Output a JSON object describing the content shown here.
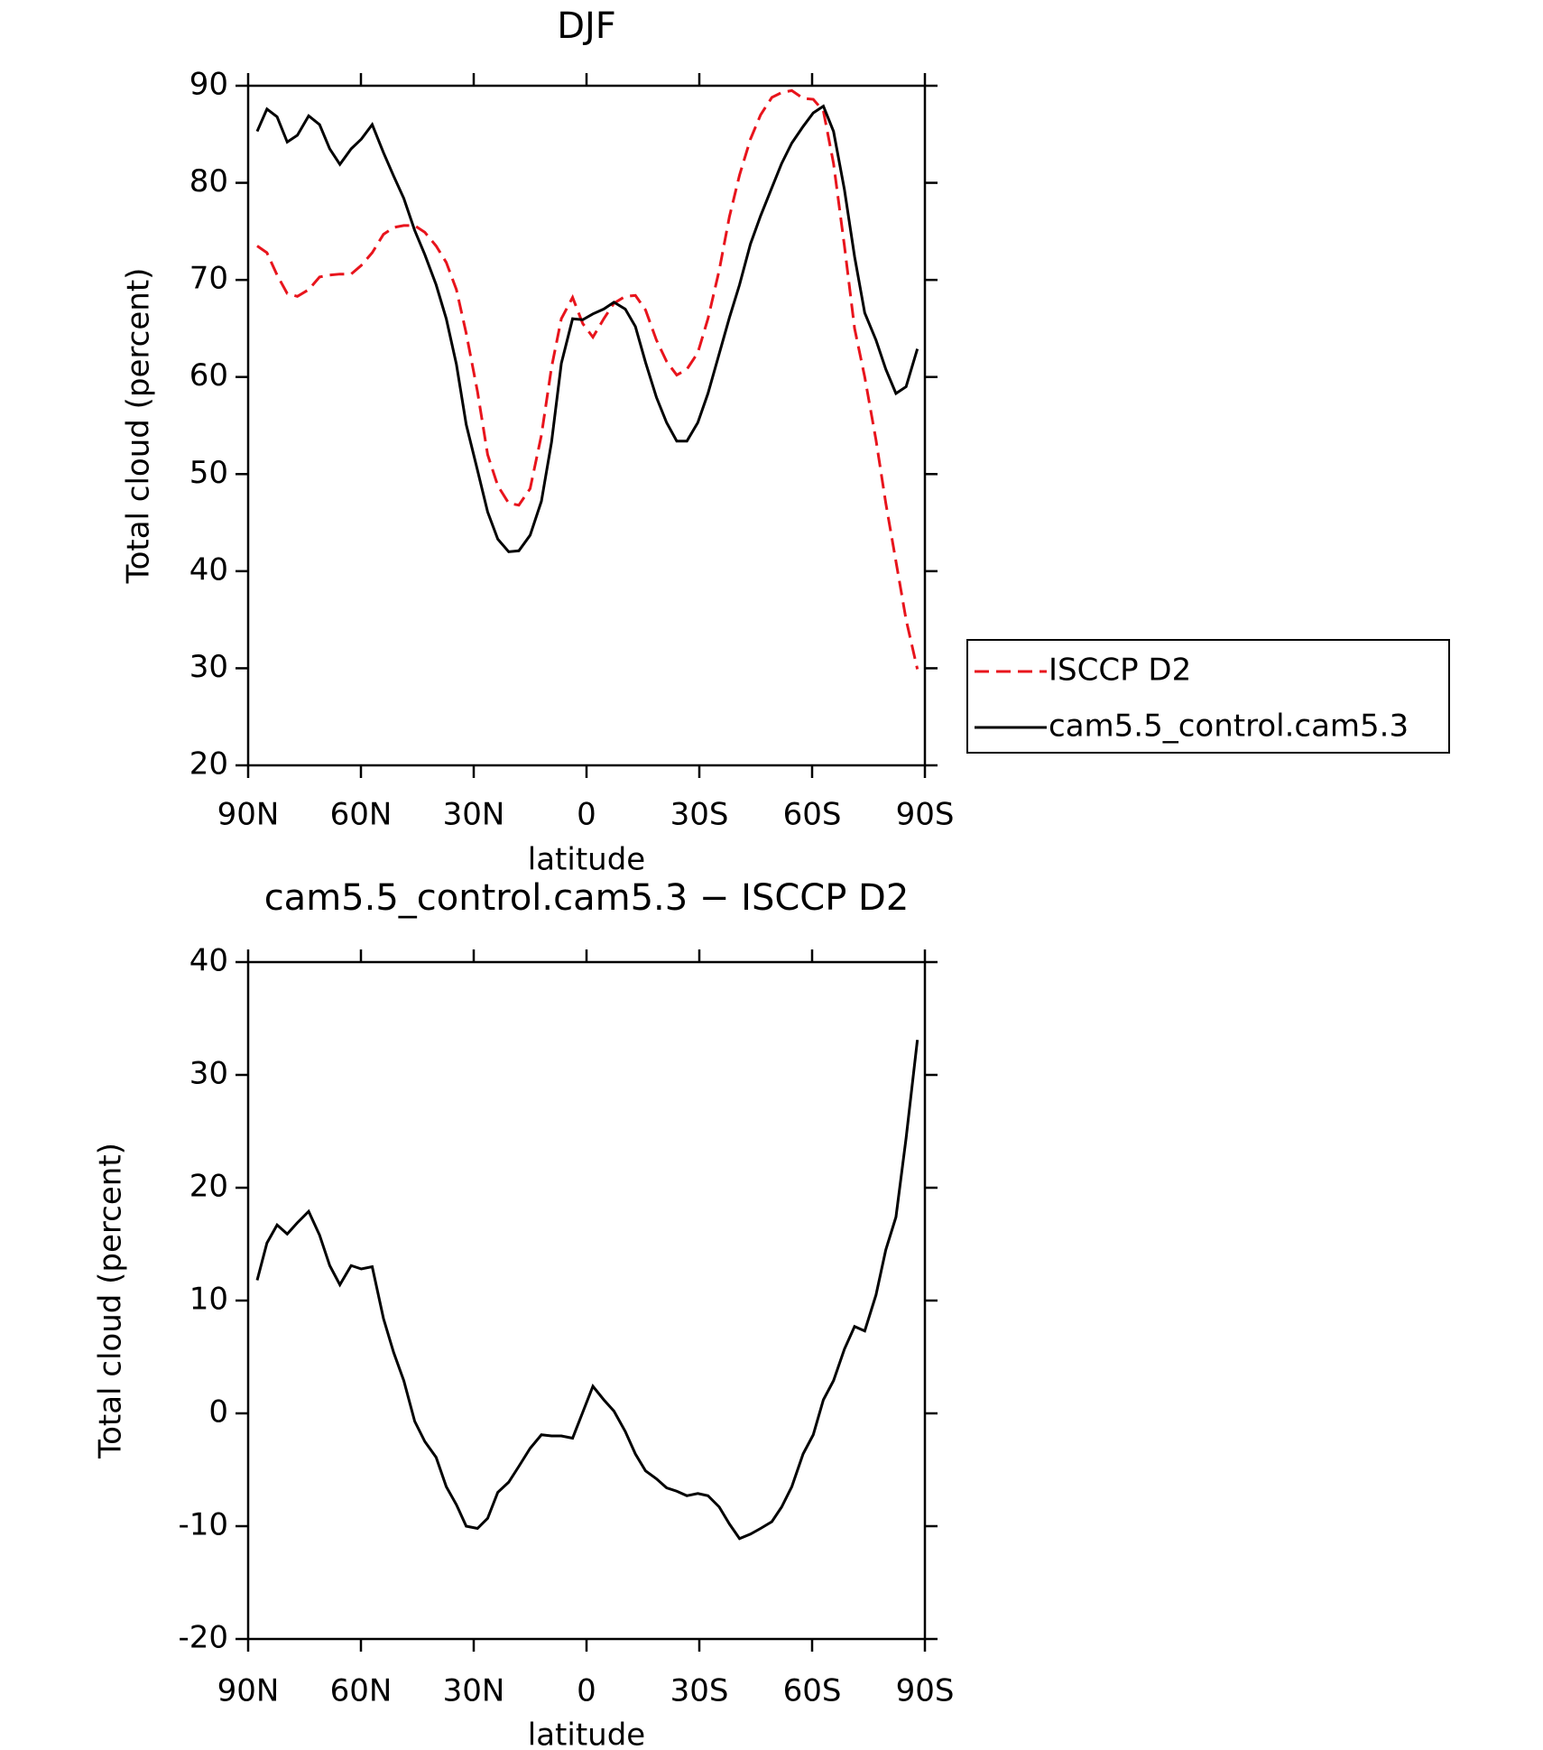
{
  "chart_data": [
    {
      "type": "line",
      "title": "DJF",
      "xlabel": "latitude",
      "ylabel": "Total cloud (percent)",
      "x": [
        87.6,
        85.0,
        82.3,
        79.6,
        76.9,
        73.9,
        71.0,
        68.3,
        65.6,
        62.6,
        59.9,
        57.0,
        54.0,
        51.3,
        48.6,
        45.7,
        43.0,
        40.0,
        37.3,
        34.6,
        32.0,
        29.0,
        26.3,
        23.6,
        20.7,
        18.0,
        15.0,
        12.0,
        9.3,
        6.7,
        3.7,
        1.0,
        -1.7,
        -4.6,
        -7.3,
        -10.3,
        -13.0,
        -15.7,
        -18.6,
        -21.3,
        -24.0,
        -26.7,
        -29.6,
        -32.3,
        -35.3,
        -38.0,
        -40.7,
        -43.6,
        -46.3,
        -49.3,
        -51.9,
        -54.6,
        -57.6,
        -60.3,
        -63.0,
        -65.7,
        -68.6,
        -71.3,
        -74.0,
        -77.0,
        -79.6,
        -82.3,
        -85.0,
        -88.0
      ],
      "series": [
        {
          "name": "ISCCP D2",
          "color": "#e8141c",
          "style": "dashed",
          "values": [
            73.5,
            72.8,
            70.5,
            68.6,
            68.3,
            69.0,
            70.3,
            70.5,
            70.6,
            70.6,
            71.5,
            72.8,
            74.7,
            75.4,
            75.6,
            75.6,
            74.9,
            73.5,
            71.8,
            69.0,
            64.5,
            58.5,
            52.0,
            48.8,
            47.0,
            46.8,
            48.5,
            54.0,
            61.0,
            66.0,
            68.2,
            65.5,
            64.1,
            66.0,
            67.6,
            68.3,
            68.4,
            66.9,
            63.8,
            61.6,
            60.2,
            60.8,
            62.5,
            66.0,
            71.0,
            76.5,
            80.8,
            84.5,
            87.0,
            88.8,
            89.3,
            89.5,
            88.7,
            88.6,
            87.4,
            82.0,
            73.5,
            65.0,
            60.0,
            53.5,
            47.0,
            41.0,
            35.0,
            29.9
          ]
        },
        {
          "name": "cam5.5_control.cam5.3",
          "color": "#000000",
          "style": "solid",
          "values": [
            85.3,
            87.6,
            86.8,
            84.2,
            84.9,
            86.9,
            86.0,
            83.5,
            81.9,
            83.5,
            84.5,
            86.0,
            83.1,
            80.7,
            78.4,
            75.1,
            72.6,
            69.5,
            66.0,
            61.3,
            55.1,
            50.4,
            46.1,
            43.3,
            42.0,
            42.1,
            43.7,
            47.2,
            53.3,
            61.4,
            66.0,
            65.9,
            66.5,
            67.0,
            67.7,
            67.0,
            65.2,
            61.5,
            57.9,
            55.3,
            53.4,
            53.4,
            55.3,
            58.3,
            62.4,
            66.1,
            69.5,
            73.7,
            76.6,
            79.5,
            82.0,
            84.1,
            85.8,
            87.2,
            87.9,
            85.3,
            79.3,
            72.4,
            66.6,
            63.8,
            60.8,
            58.3,
            59.0,
            62.9
          ]
        }
      ],
      "xlim": [
        90,
        -90
      ],
      "xticks": [
        {
          "value": 90,
          "label": "90N"
        },
        {
          "value": 60,
          "label": "60N"
        },
        {
          "value": 30,
          "label": "30N"
        },
        0,
        {
          "value": -30,
          "label": "30S"
        },
        {
          "value": -60,
          "label": "60S"
        },
        {
          "value": -90,
          "label": "90S"
        }
      ],
      "ylim": [
        20,
        90
      ],
      "yticks": [
        20,
        30,
        40,
        50,
        60,
        70,
        80,
        90
      ],
      "legend": "outside-right"
    },
    {
      "type": "line",
      "title": "cam5.5_control.cam5.3 − ISCCP D2",
      "xlabel": "latitude",
      "ylabel": "Total cloud (percent)",
      "x": [
        87.6,
        85.0,
        82.3,
        79.6,
        76.9,
        73.9,
        71.0,
        68.3,
        65.6,
        62.6,
        59.9,
        57.0,
        54.0,
        51.3,
        48.6,
        45.7,
        43.0,
        40.0,
        37.3,
        34.6,
        32.0,
        29.0,
        26.3,
        23.6,
        20.7,
        18.0,
        15.0,
        12.0,
        9.3,
        6.7,
        3.7,
        1.0,
        -1.7,
        -4.6,
        -7.3,
        -10.3,
        -13.0,
        -15.7,
        -18.6,
        -21.3,
        -24.0,
        -26.7,
        -29.6,
        -32.3,
        -35.3,
        -38.0,
        -40.7,
        -43.6,
        -46.3,
        -49.3,
        -51.9,
        -54.6,
        -57.6,
        -60.3,
        -63.0,
        -65.7,
        -68.6,
        -71.3,
        -74.0,
        -77.0,
        -79.6,
        -82.3,
        -85.0,
        -88.0
      ],
      "series": [
        {
          "color": "#000000",
          "style": "solid",
          "values": [
            11.8,
            15.1,
            16.7,
            15.9,
            16.9,
            17.9,
            15.8,
            13.1,
            11.4,
            13.1,
            12.8,
            13.0,
            8.4,
            5.4,
            2.9,
            -0.7,
            -2.5,
            -3.9,
            -6.5,
            -8.1,
            -10.0,
            -10.2,
            -9.3,
            -7.0,
            -6.1,
            -4.7,
            -3.1,
            -1.9,
            -2.0,
            -2.0,
            -2.2,
            0.1,
            2.4,
            1.2,
            0.2,
            -1.6,
            -3.6,
            -5.1,
            -5.8,
            -6.6,
            -6.9,
            -7.3,
            -7.1,
            -7.3,
            -8.3,
            -9.8,
            -11.1,
            -10.7,
            -10.2,
            -9.6,
            -8.3,
            -6.5,
            -3.6,
            -1.9,
            1.2,
            2.9,
            5.7,
            7.7,
            7.3,
            10.5,
            14.5,
            17.4,
            24.4,
            33.1
          ]
        }
      ],
      "xlim": [
        90,
        -90
      ],
      "xticks": [
        {
          "value": 90,
          "label": "90N"
        },
        {
          "value": 60,
          "label": "60N"
        },
        {
          "value": 30,
          "label": "30N"
        },
        0,
        {
          "value": -30,
          "label": "30S"
        },
        {
          "value": -60,
          "label": "60S"
        },
        {
          "value": -90,
          "label": "90S"
        }
      ],
      "ylim": [
        -20,
        40
      ],
      "yticks": [
        -20,
        -10,
        0,
        10,
        20,
        30,
        40
      ]
    }
  ]
}
